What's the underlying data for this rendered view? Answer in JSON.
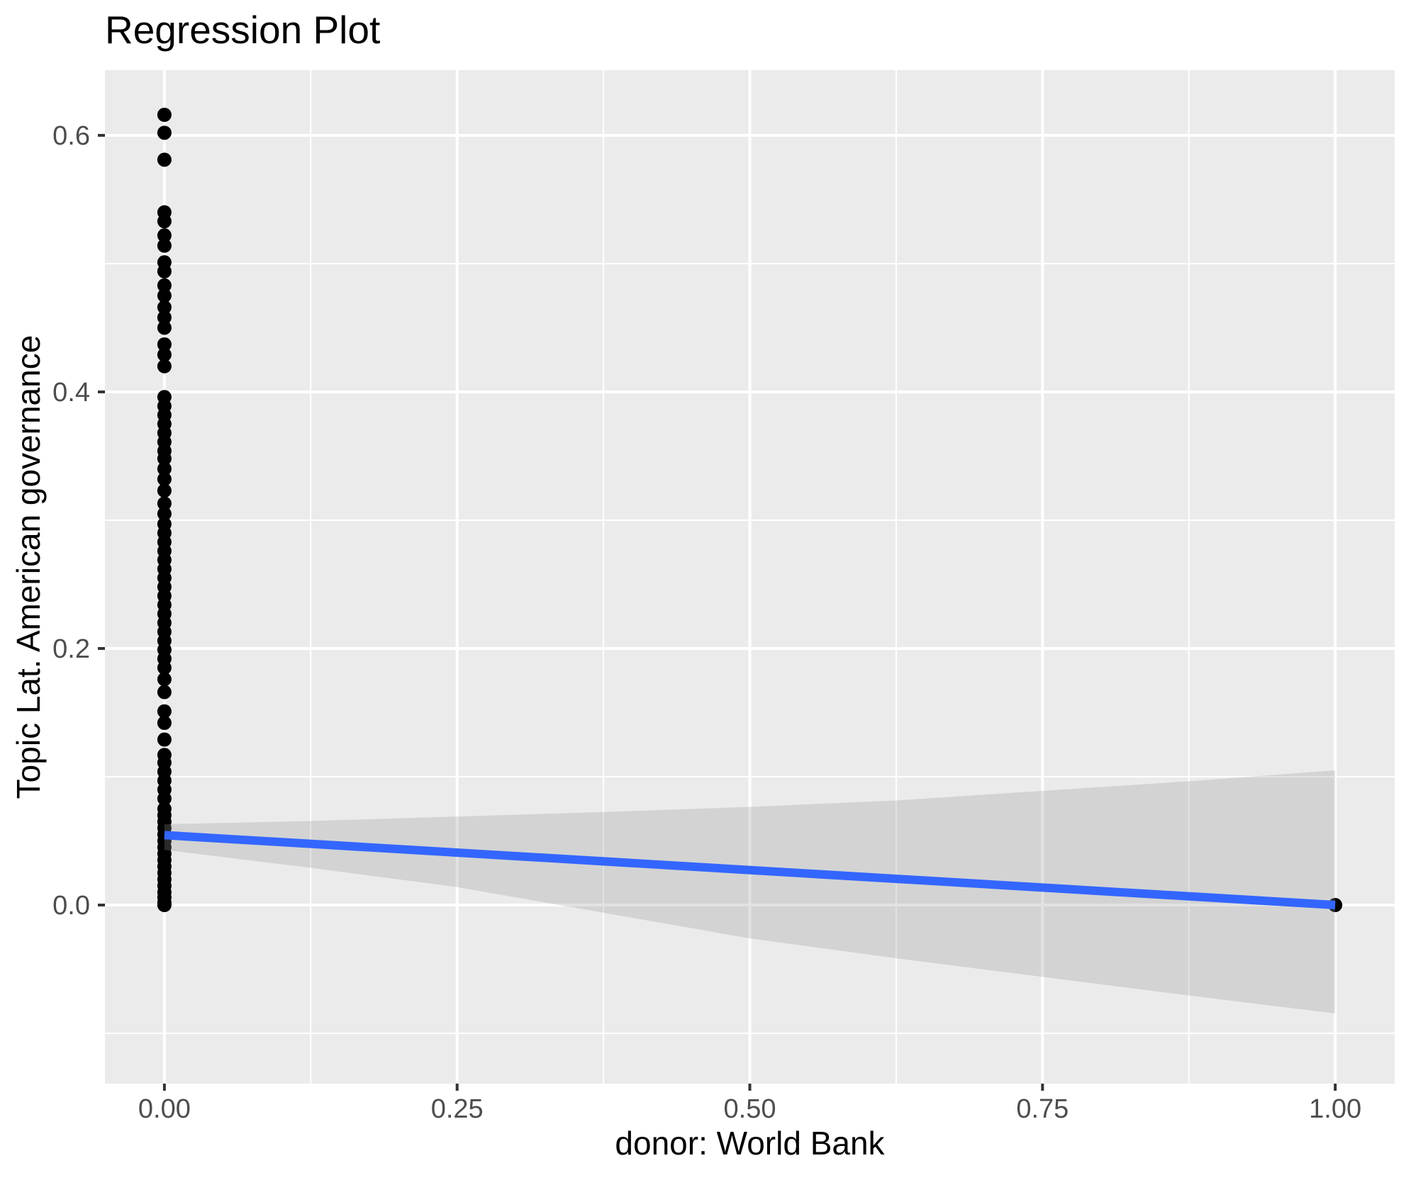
{
  "title": "Regression Plot",
  "chart_data": {
    "type": "scatter",
    "title": "Regression Plot",
    "xlabel": "donor: World Bank",
    "ylabel": "Topic Lat. American governance",
    "legend": "none",
    "grid": "on",
    "x_axis": {
      "range": [
        -0.0508,
        1.0508
      ],
      "ticks": [
        0,
        0.25,
        0.5,
        0.75,
        1.0
      ],
      "tick_labels": [
        "0.00",
        "0.25",
        "0.50",
        "0.75",
        "1.00"
      ],
      "minor_ticks": [
        0.125,
        0.375,
        0.625,
        0.875
      ]
    },
    "y_axis": {
      "range": [
        -0.1392,
        0.6508
      ],
      "ticks": [
        0,
        0.2,
        0.4,
        0.6
      ],
      "tick_labels": [
        "0.0",
        "0.2",
        "0.4",
        "0.6"
      ],
      "minor_ticks": [
        -0.1,
        0.1,
        0.3,
        0.5
      ]
    },
    "scatter": {
      "x0_y_values": [
        0.616,
        0.602,
        0.581,
        0.54,
        0.533,
        0.522,
        0.514,
        0.501,
        0.494,
        0.483,
        0.475,
        0.466,
        0.458,
        0.45,
        0.437,
        0.429,
        0.42,
        0.396,
        0.389,
        0.382,
        0.375,
        0.368,
        0.361,
        0.354,
        0.348,
        0.34,
        0.332,
        0.323,
        0.313,
        0.305,
        0.297,
        0.29,
        0.283,
        0.276,
        0.269,
        0.262,
        0.255,
        0.248,
        0.241,
        0.234,
        0.227,
        0.22,
        0.213,
        0.206,
        0.199,
        0.192,
        0.185,
        0.176,
        0.166,
        0.151,
        0.142,
        0.129,
        0.117,
        0.111,
        0.104,
        0.097,
        0.09,
        0.083,
        0.075,
        0.07,
        0.065,
        0.06,
        0.055,
        0.05,
        0.045,
        0.04,
        0.035,
        0.03,
        0.025,
        0.02,
        0.015,
        0.01,
        0.006,
        0.002,
        0.0
      ],
      "other_points": [
        [
          1.0,
          0.0
        ]
      ]
    },
    "regression_line": {
      "x": [
        0,
        1
      ],
      "y": [
        0.0545,
        0.0
      ]
    },
    "confidence_ribbon": {
      "x": [
        0,
        0.125,
        0.25,
        0.375,
        0.5,
        0.625,
        0.75,
        0.875,
        1.0
      ],
      "upper": [
        0.063,
        0.0655,
        0.069,
        0.0725,
        0.0765,
        0.0815,
        0.089,
        0.0965,
        0.105
      ],
      "lower": [
        0.043,
        0.029,
        0.014,
        -0.006,
        -0.026,
        -0.0415,
        -0.056,
        -0.0705,
        -0.0845
      ]
    },
    "colors": {
      "panel_bg": "#EBEBEB",
      "grid": "#FFFFFF",
      "points": "#000000",
      "regression_line": "#3366FF",
      "ribbon_fill": "rgba(150,150,150,0.28)",
      "tick_text": "#4D4D4D",
      "tick_mark": "#333333",
      "title_text": "#000000"
    }
  }
}
